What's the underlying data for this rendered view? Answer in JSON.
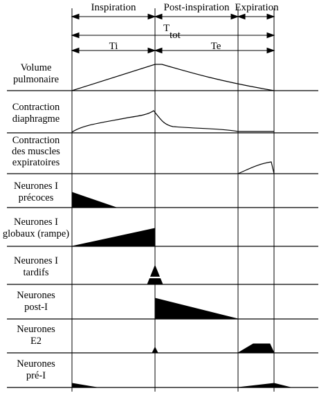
{
  "phases": {
    "inspiration": "Inspiration",
    "post_inspiration": "Post-inspiration",
    "expiration": "Expiration"
  },
  "durations": {
    "ttot_main": "T",
    "ttot_sub": "tot",
    "ti": "Ti",
    "te": "Te"
  },
  "rows": [
    {
      "id": "volume",
      "lines": [
        "Volume",
        "pulmonaire"
      ]
    },
    {
      "id": "diaphragme",
      "lines": [
        "Contraction",
        "diaphragme"
      ]
    },
    {
      "id": "expiratoires",
      "lines": [
        "Contraction",
        "des muscles",
        "expiratoires"
      ]
    },
    {
      "id": "precoces",
      "lines": [
        "Neurones I",
        "précoces"
      ]
    },
    {
      "id": "globaux",
      "lines": [
        "Neurones I",
        "globaux (rampe)"
      ]
    },
    {
      "id": "tardifs",
      "lines": [
        "Neurones I",
        "tardifs"
      ]
    },
    {
      "id": "post-i",
      "lines": [
        "Neurones",
        "post-I"
      ]
    },
    {
      "id": "e2",
      "lines": [
        "Neurones",
        "E2"
      ]
    },
    {
      "id": "pre-i",
      "lines": [
        "Neurones",
        "pré-I"
      ]
    }
  ]
}
